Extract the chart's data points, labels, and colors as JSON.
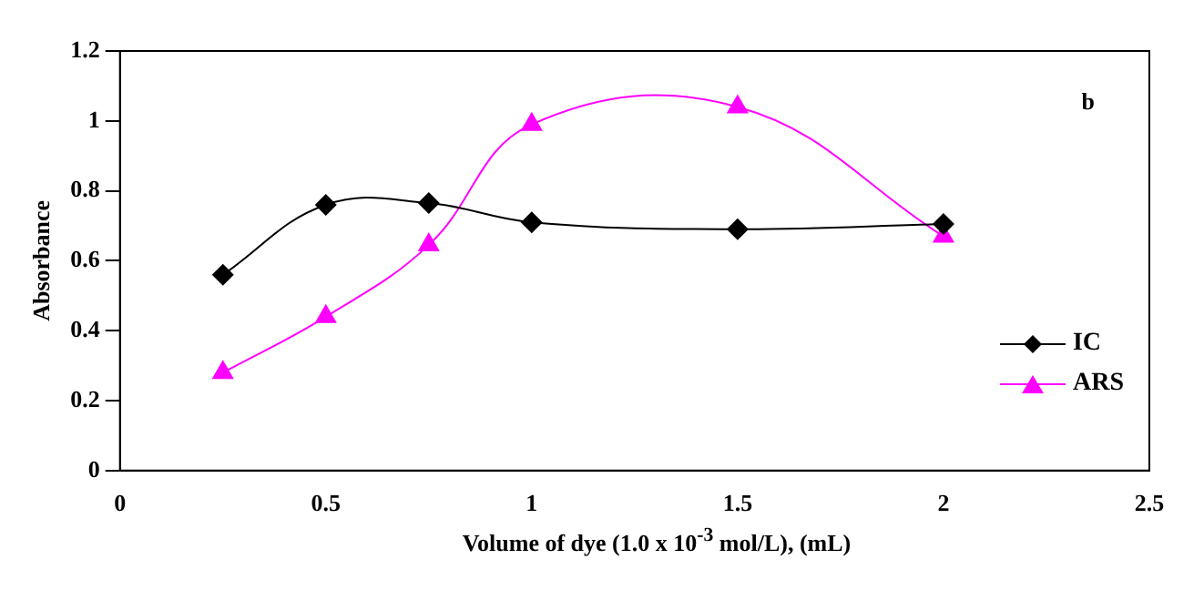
{
  "chart_data": {
    "type": "line",
    "xlabel": "Volume of dye (1.0 x 10$^{-3}$ mol/L), (mL)",
    "ylabel": "Absorbance",
    "annotations": [
      "b"
    ],
    "x": [
      0.25,
      0.5,
      0.75,
      1,
      1.5,
      2
    ],
    "series": [
      {
        "name": "IC",
        "color": "#000000",
        "marker": "diamond",
        "values": [
          0.56,
          0.76,
          0.765,
          0.71,
          0.69,
          0.705
        ]
      },
      {
        "name": "ARS",
        "color": "#ff00ff",
        "marker": "triangle",
        "values": [
          0.28,
          0.44,
          0.645,
          0.99,
          1.04,
          0.67
        ]
      }
    ],
    "xlim": [
      0,
      2.5
    ],
    "xticks": [
      0,
      0.5,
      1,
      1.5,
      2,
      2.5
    ],
    "ylim": [
      0,
      1.2
    ],
    "yticks": [
      0,
      0.2,
      0.4,
      0.6,
      0.8,
      1,
      1.2
    ],
    "grid": false,
    "legend": "right"
  }
}
